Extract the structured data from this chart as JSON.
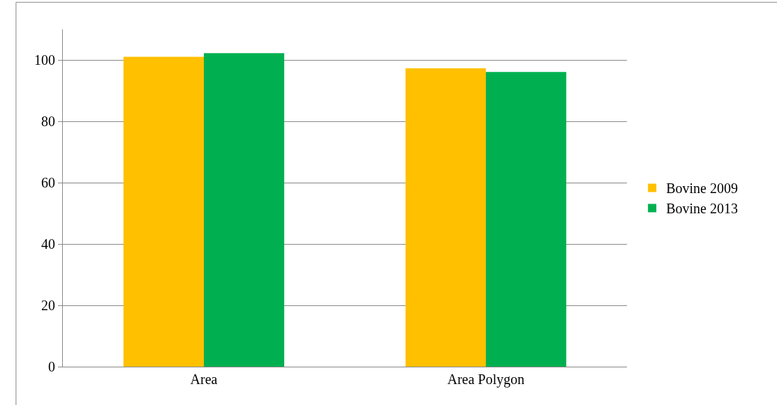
{
  "chart_data": {
    "type": "bar",
    "categories": [
      "Area",
      "Area Polygon"
    ],
    "series": [
      {
        "name": "Bovine 2009",
        "color": "#ffc000",
        "values": [
          101,
          97.3
        ]
      },
      {
        "name": "Bovine 2013",
        "color": "#00b050",
        "values": [
          102.2,
          96.1
        ]
      }
    ],
    "ylim": [
      0,
      110
    ],
    "yticks": [
      0,
      20,
      40,
      60,
      80,
      100
    ],
    "grid": "y",
    "legend": "right"
  }
}
